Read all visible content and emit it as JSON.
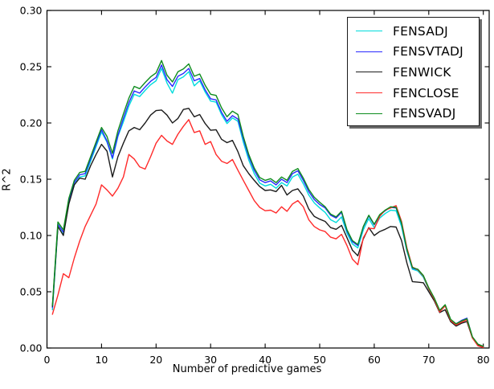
{
  "chart_data": {
    "type": "line",
    "title": "",
    "xlabel": "Number of predictive games",
    "ylabel": "R^2",
    "xlim": [
      0,
      81
    ],
    "ylim": [
      0.0,
      0.3
    ],
    "grid": false,
    "legend_position": "upper right",
    "xticks": [
      0,
      10,
      20,
      30,
      40,
      50,
      60,
      70,
      80
    ],
    "ytick_labels": [
      "0.00",
      "0.05",
      "0.10",
      "0.15",
      "0.20",
      "0.25",
      "0.30"
    ],
    "ytick_values": [
      0.0,
      0.05,
      0.1,
      0.15,
      0.2,
      0.25,
      0.3
    ],
    "x": [
      1,
      2,
      3,
      4,
      5,
      6,
      7,
      8,
      9,
      10,
      11,
      12,
      13,
      14,
      15,
      16,
      17,
      18,
      19,
      20,
      21,
      22,
      23,
      24,
      25,
      26,
      27,
      28,
      29,
      30,
      31,
      32,
      33,
      34,
      35,
      36,
      37,
      38,
      39,
      40,
      41,
      42,
      43,
      44,
      45,
      46,
      47,
      48,
      49,
      50,
      51,
      52,
      53,
      54,
      55,
      56,
      57,
      58,
      59,
      60,
      61,
      62,
      63,
      64,
      65,
      66,
      67,
      68,
      69,
      70,
      71,
      72,
      73,
      74,
      75,
      76,
      77,
      78,
      79,
      80
    ],
    "series": [
      {
        "name": "FENSADJ",
        "color": "#00DCDC",
        "values": [
          0.034,
          0.108,
          0.101,
          0.129,
          0.145,
          0.152,
          0.153,
          0.166,
          0.179,
          0.192,
          0.183,
          0.168,
          0.188,
          0.201,
          0.215,
          0.2255,
          0.2235,
          0.229,
          0.234,
          0.2375,
          0.2485,
          0.2355,
          0.2265,
          0.2385,
          0.241,
          0.2455,
          0.233,
          0.2375,
          0.2275,
          0.2195,
          0.2185,
          0.2075,
          0.1995,
          0.2045,
          0.2015,
          0.183,
          0.167,
          0.155,
          0.1465,
          0.144,
          0.1455,
          0.142,
          0.147,
          0.144,
          0.152,
          0.1545,
          0.146,
          0.136,
          0.129,
          0.1245,
          0.1205,
          0.114,
          0.1115,
          0.1165,
          0.102,
          0.0925,
          0.089,
          0.105,
          0.115,
          0.107,
          0.1155,
          0.1195,
          0.1225,
          0.122,
          0.108,
          0.086,
          0.07,
          0.0685,
          0.063,
          0.052,
          0.043,
          0.033,
          0.038,
          0.025,
          0.021,
          0.0235,
          0.0255,
          0.0095,
          0.003,
          0.001
        ]
      },
      {
        "name": "FENSVTADJ",
        "color": "#2A2AFF",
        "values": [
          0.036,
          0.11,
          0.103,
          0.131,
          0.147,
          0.154,
          0.155,
          0.168,
          0.181,
          0.194,
          0.184,
          0.169,
          0.189,
          0.204,
          0.218,
          0.2285,
          0.2265,
          0.232,
          0.237,
          0.2405,
          0.2515,
          0.2385,
          0.2325,
          0.2415,
          0.244,
          0.2485,
          0.2375,
          0.2395,
          0.2295,
          0.2215,
          0.2205,
          0.2095,
          0.2015,
          0.2065,
          0.2035,
          0.186,
          0.17,
          0.158,
          0.1495,
          0.147,
          0.1485,
          0.145,
          0.15,
          0.147,
          0.155,
          0.1575,
          0.149,
          0.139,
          0.132,
          0.1275,
          0.1245,
          0.118,
          0.1155,
          0.1205,
          0.104,
          0.0945,
          0.091,
          0.1075,
          0.1175,
          0.1095,
          0.118,
          0.122,
          0.125,
          0.1245,
          0.1105,
          0.087,
          0.071,
          0.0695,
          0.064,
          0.053,
          0.044,
          0.033,
          0.038,
          0.025,
          0.0215,
          0.0245,
          0.0265,
          0.0095,
          0.003,
          0.001
        ]
      },
      {
        "name": "FENWICK",
        "color": "#1C1C1C",
        "values": [
          0.037,
          0.108,
          0.1,
          0.128,
          0.145,
          0.151,
          0.15,
          0.162,
          0.172,
          0.181,
          0.175,
          0.152,
          0.17,
          0.182,
          0.193,
          0.196,
          0.194,
          0.2,
          0.207,
          0.211,
          0.2115,
          0.207,
          0.2,
          0.204,
          0.212,
          0.213,
          0.2055,
          0.2075,
          0.1995,
          0.1935,
          0.194,
          0.1855,
          0.1825,
          0.1845,
          0.1745,
          0.162,
          0.155,
          0.149,
          0.1435,
          0.14,
          0.1405,
          0.139,
          0.1445,
          0.136,
          0.14,
          0.1415,
          0.135,
          0.1235,
          0.117,
          0.1145,
          0.1125,
          0.107,
          0.1055,
          0.109,
          0.098,
          0.087,
          0.082,
          0.097,
          0.107,
          0.1,
          0.1035,
          0.1055,
          0.108,
          0.1075,
          0.0955,
          0.0755,
          0.059,
          0.0585,
          0.058,
          0.05,
          0.042,
          0.0315,
          0.034,
          0.0235,
          0.0195,
          0.022,
          0.0235,
          0.009,
          0.0025,
          0.001
        ]
      },
      {
        "name": "FENCLOSE",
        "color": "#FF2B2B",
        "values": [
          0.03,
          0.047,
          0.066,
          0.0625,
          0.08,
          0.095,
          0.108,
          0.118,
          0.128,
          0.145,
          0.1405,
          0.135,
          0.142,
          0.152,
          0.172,
          0.168,
          0.161,
          0.159,
          0.17,
          0.182,
          0.189,
          0.184,
          0.181,
          0.19,
          0.197,
          0.203,
          0.1915,
          0.193,
          0.181,
          0.1835,
          0.172,
          0.166,
          0.164,
          0.1675,
          0.158,
          0.149,
          0.14,
          0.131,
          0.125,
          0.122,
          0.1225,
          0.12,
          0.1255,
          0.1215,
          0.128,
          0.131,
          0.1255,
          0.114,
          0.108,
          0.105,
          0.1035,
          0.0985,
          0.097,
          0.101,
          0.091,
          0.079,
          0.074,
          0.098,
          0.1065,
          0.106,
          0.117,
          0.1225,
          0.1245,
          0.1265,
          0.1125,
          0.089,
          0.072,
          0.0695,
          0.064,
          0.0525,
          0.0435,
          0.032,
          0.0375,
          0.0245,
          0.0205,
          0.023,
          0.025,
          0.009,
          0.002,
          0.0005
        ]
      },
      {
        "name": "FENSVADJ",
        "color": "#0D8C1D",
        "values": [
          0.038,
          0.112,
          0.105,
          0.133,
          0.149,
          0.156,
          0.157,
          0.17,
          0.183,
          0.196,
          0.188,
          0.173,
          0.193,
          0.208,
          0.222,
          0.2325,
          0.2305,
          0.236,
          0.241,
          0.2445,
          0.2555,
          0.2425,
          0.2365,
          0.2455,
          0.248,
          0.2525,
          0.2415,
          0.2435,
          0.2335,
          0.2255,
          0.2245,
          0.2135,
          0.2055,
          0.2105,
          0.2075,
          0.188,
          0.172,
          0.16,
          0.1515,
          0.149,
          0.1505,
          0.147,
          0.152,
          0.149,
          0.157,
          0.1595,
          0.151,
          0.141,
          0.134,
          0.1295,
          0.1255,
          0.119,
          0.1165,
          0.1215,
          0.105,
          0.0955,
          0.092,
          0.108,
          0.118,
          0.11,
          0.1185,
          0.1225,
          0.1255,
          0.125,
          0.111,
          0.0875,
          0.0715,
          0.07,
          0.0645,
          0.0535,
          0.0445,
          0.0335,
          0.0385,
          0.0255,
          0.0215,
          0.024,
          0.026,
          0.01,
          0.0035,
          0.0015
        ]
      }
    ]
  }
}
